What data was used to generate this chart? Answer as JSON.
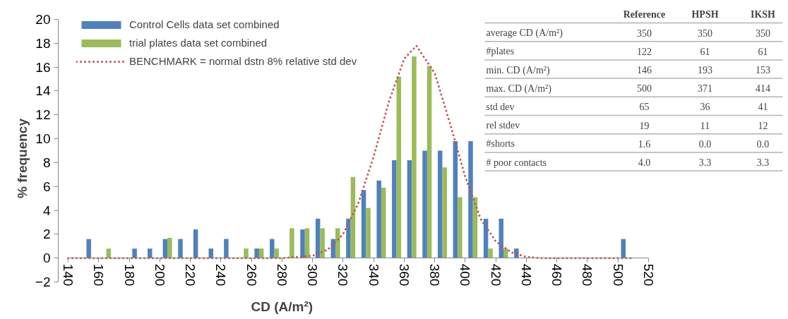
{
  "chart_data": [
    {
      "type": "bar",
      "xlabel": "CD (A/m²)",
      "ylabel": "% frequency",
      "x": [
        155,
        165,
        175,
        185,
        195,
        205,
        215,
        225,
        235,
        245,
        255,
        265,
        275,
        285,
        295,
        305,
        315,
        325,
        335,
        345,
        355,
        365,
        375,
        385,
        395,
        405,
        415,
        425,
        435,
        445,
        455,
        465,
        475,
        485,
        495,
        505
      ],
      "series": [
        {
          "name": "Control Cells data set combined",
          "color": "#4f81bd",
          "values": [
            1.6,
            0,
            0,
            0.8,
            0.8,
            1.6,
            1.6,
            2.4,
            0.8,
            1.6,
            0,
            0.8,
            1.6,
            0,
            2.4,
            3.3,
            1.6,
            3.3,
            5.7,
            6.5,
            8.2,
            8.2,
            9.0,
            9.0,
            9.8,
            9.8,
            3.3,
            3.3,
            0.8,
            0,
            0,
            0,
            0,
            0,
            0,
            1.6
          ]
        },
        {
          "name": "trial plates data set combined",
          "color": "#9bbb59",
          "values": [
            0,
            0.8,
            0,
            0,
            0,
            1.7,
            0,
            0,
            0,
            0,
            0.8,
            0.8,
            0.8,
            2.5,
            2.5,
            2.5,
            2.5,
            6.8,
            4.2,
            5.9,
            15.2,
            16.9,
            16.1,
            7.6,
            5.1,
            5.1,
            0.8,
            0.8,
            0,
            0,
            0,
            0,
            0,
            0,
            0,
            0
          ]
        },
        {
          "name": "BENCHMARK = normal dstn 8% relative std dev",
          "type": "line",
          "color": "#c0504d",
          "line_style": "dotted",
          "x": [
            140,
            150,
            160,
            170,
            180,
            190,
            200,
            210,
            220,
            230,
            240,
            250,
            260,
            270,
            280,
            290,
            300,
            310,
            320,
            330,
            340,
            350,
            360,
            368,
            380,
            390,
            400,
            410,
            420,
            430,
            440,
            450,
            460,
            470,
            480,
            490,
            500,
            510
          ],
          "values": [
            0,
            0,
            0,
            0,
            0,
            0,
            0,
            0,
            0,
            0,
            0,
            0,
            0,
            0,
            0,
            0.1,
            0.2,
            0.7,
            2.0,
            4.6,
            8.5,
            13.1,
            16.7,
            17.8,
            15.5,
            11.3,
            6.8,
            3.3,
            1.4,
            0.5,
            0.1,
            0,
            0,
            0,
            0,
            0,
            0,
            0
          ]
        }
      ],
      "xlim": [
        140,
        520
      ],
      "xticks": [
        140,
        160,
        180,
        200,
        220,
        240,
        260,
        280,
        300,
        320,
        340,
        360,
        380,
        400,
        420,
        440,
        460,
        480,
        500,
        520
      ],
      "ylim": [
        -2,
        20
      ],
      "yticks": [
        -2,
        0,
        2,
        4,
        6,
        8,
        10,
        12,
        14,
        16,
        18,
        20
      ],
      "legend": "top left",
      "grid": false
    },
    {
      "type": "other",
      "categories": [
        "Reference",
        "HPSH",
        "IKSH"
      ],
      "y_categories": [
        "average CD (A/m²)",
        "#plates",
        "min. CD (A/m²)",
        "max. CD (A/m²)",
        "std dev",
        "rel stdev",
        "#shorts",
        "# poor contacts"
      ],
      "cell_labels": [
        [
          "350",
          "350",
          "350"
        ],
        [
          "122",
          "61",
          "61"
        ],
        [
          "146",
          "193",
          "153"
        ],
        [
          "500",
          "371",
          "414"
        ],
        [
          "65",
          "36",
          "41"
        ],
        [
          "19",
          "11",
          "12"
        ],
        [
          "1.6",
          "0.0",
          "0.0"
        ],
        [
          "4.0",
          "3.3",
          "3.3"
        ]
      ]
    }
  ]
}
